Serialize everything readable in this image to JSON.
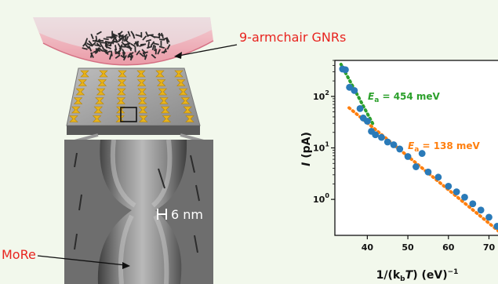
{
  "labels": {
    "gnr": "9-armchair GNRs",
    "scale_bar": "6 nm",
    "electrode": "MoRe"
  },
  "chart_data": {
    "type": "scatter",
    "xlabel": "1/(k_bT) (eV)^-1",
    "ylabel": "I (pA)",
    "y_scale": "log",
    "xlim": [
      32,
      73
    ],
    "ylim": [
      0.2,
      500
    ],
    "x_ticks": [
      "40",
      "50",
      "60",
      "70"
    ],
    "y_ticks": [
      "10^2",
      "10^1",
      "10^0"
    ],
    "series": [
      {
        "values": [
          {
            "x": 33.9,
            "y": 340
          },
          {
            "x": 34.6,
            "y": 330
          },
          {
            "x": 35.6,
            "y": 150
          },
          {
            "x": 36.8,
            "y": 130
          },
          {
            "x": 38.2,
            "y": 58
          },
          {
            "x": 39.0,
            "y": 38
          },
          {
            "x": 40.0,
            "y": 33
          },
          {
            "x": 41.0,
            "y": 21
          },
          {
            "x": 42.0,
            "y": 18
          },
          {
            "x": 43.5,
            "y": 16
          },
          {
            "x": 45.0,
            "y": 13
          },
          {
            "x": 46.5,
            "y": 11.5
          },
          {
            "x": 48.0,
            "y": 9.5
          },
          {
            "x": 50.0,
            "y": 6.8
          },
          {
            "x": 52.0,
            "y": 4.3
          },
          {
            "x": 53.5,
            "y": 7.8
          },
          {
            "x": 55.0,
            "y": 3.4
          },
          {
            "x": 57.5,
            "y": 2.7
          },
          {
            "x": 60.0,
            "y": 1.8
          },
          {
            "x": 62.0,
            "y": 1.4
          },
          {
            "x": 64.0,
            "y": 1.1
          },
          {
            "x": 66.0,
            "y": 0.82
          },
          {
            "x": 68.0,
            "y": 0.62
          },
          {
            "x": 70.0,
            "y": 0.45
          },
          {
            "x": 72.0,
            "y": 0.3
          }
        ],
        "color": "#2a7ab8"
      }
    ],
    "fits": [
      {
        "label": "E_a = 454 meV",
        "color": "#2ca02c",
        "x_range": [
          33.5,
          41.5
        ],
        "y_start": 420,
        "y_end": 28
      },
      {
        "label": "E_a = 138 meV",
        "color": "#ff7f0e",
        "x_range": [
          35.5,
          73
        ],
        "y_start": 60,
        "y_end": 0.22
      }
    ]
  }
}
